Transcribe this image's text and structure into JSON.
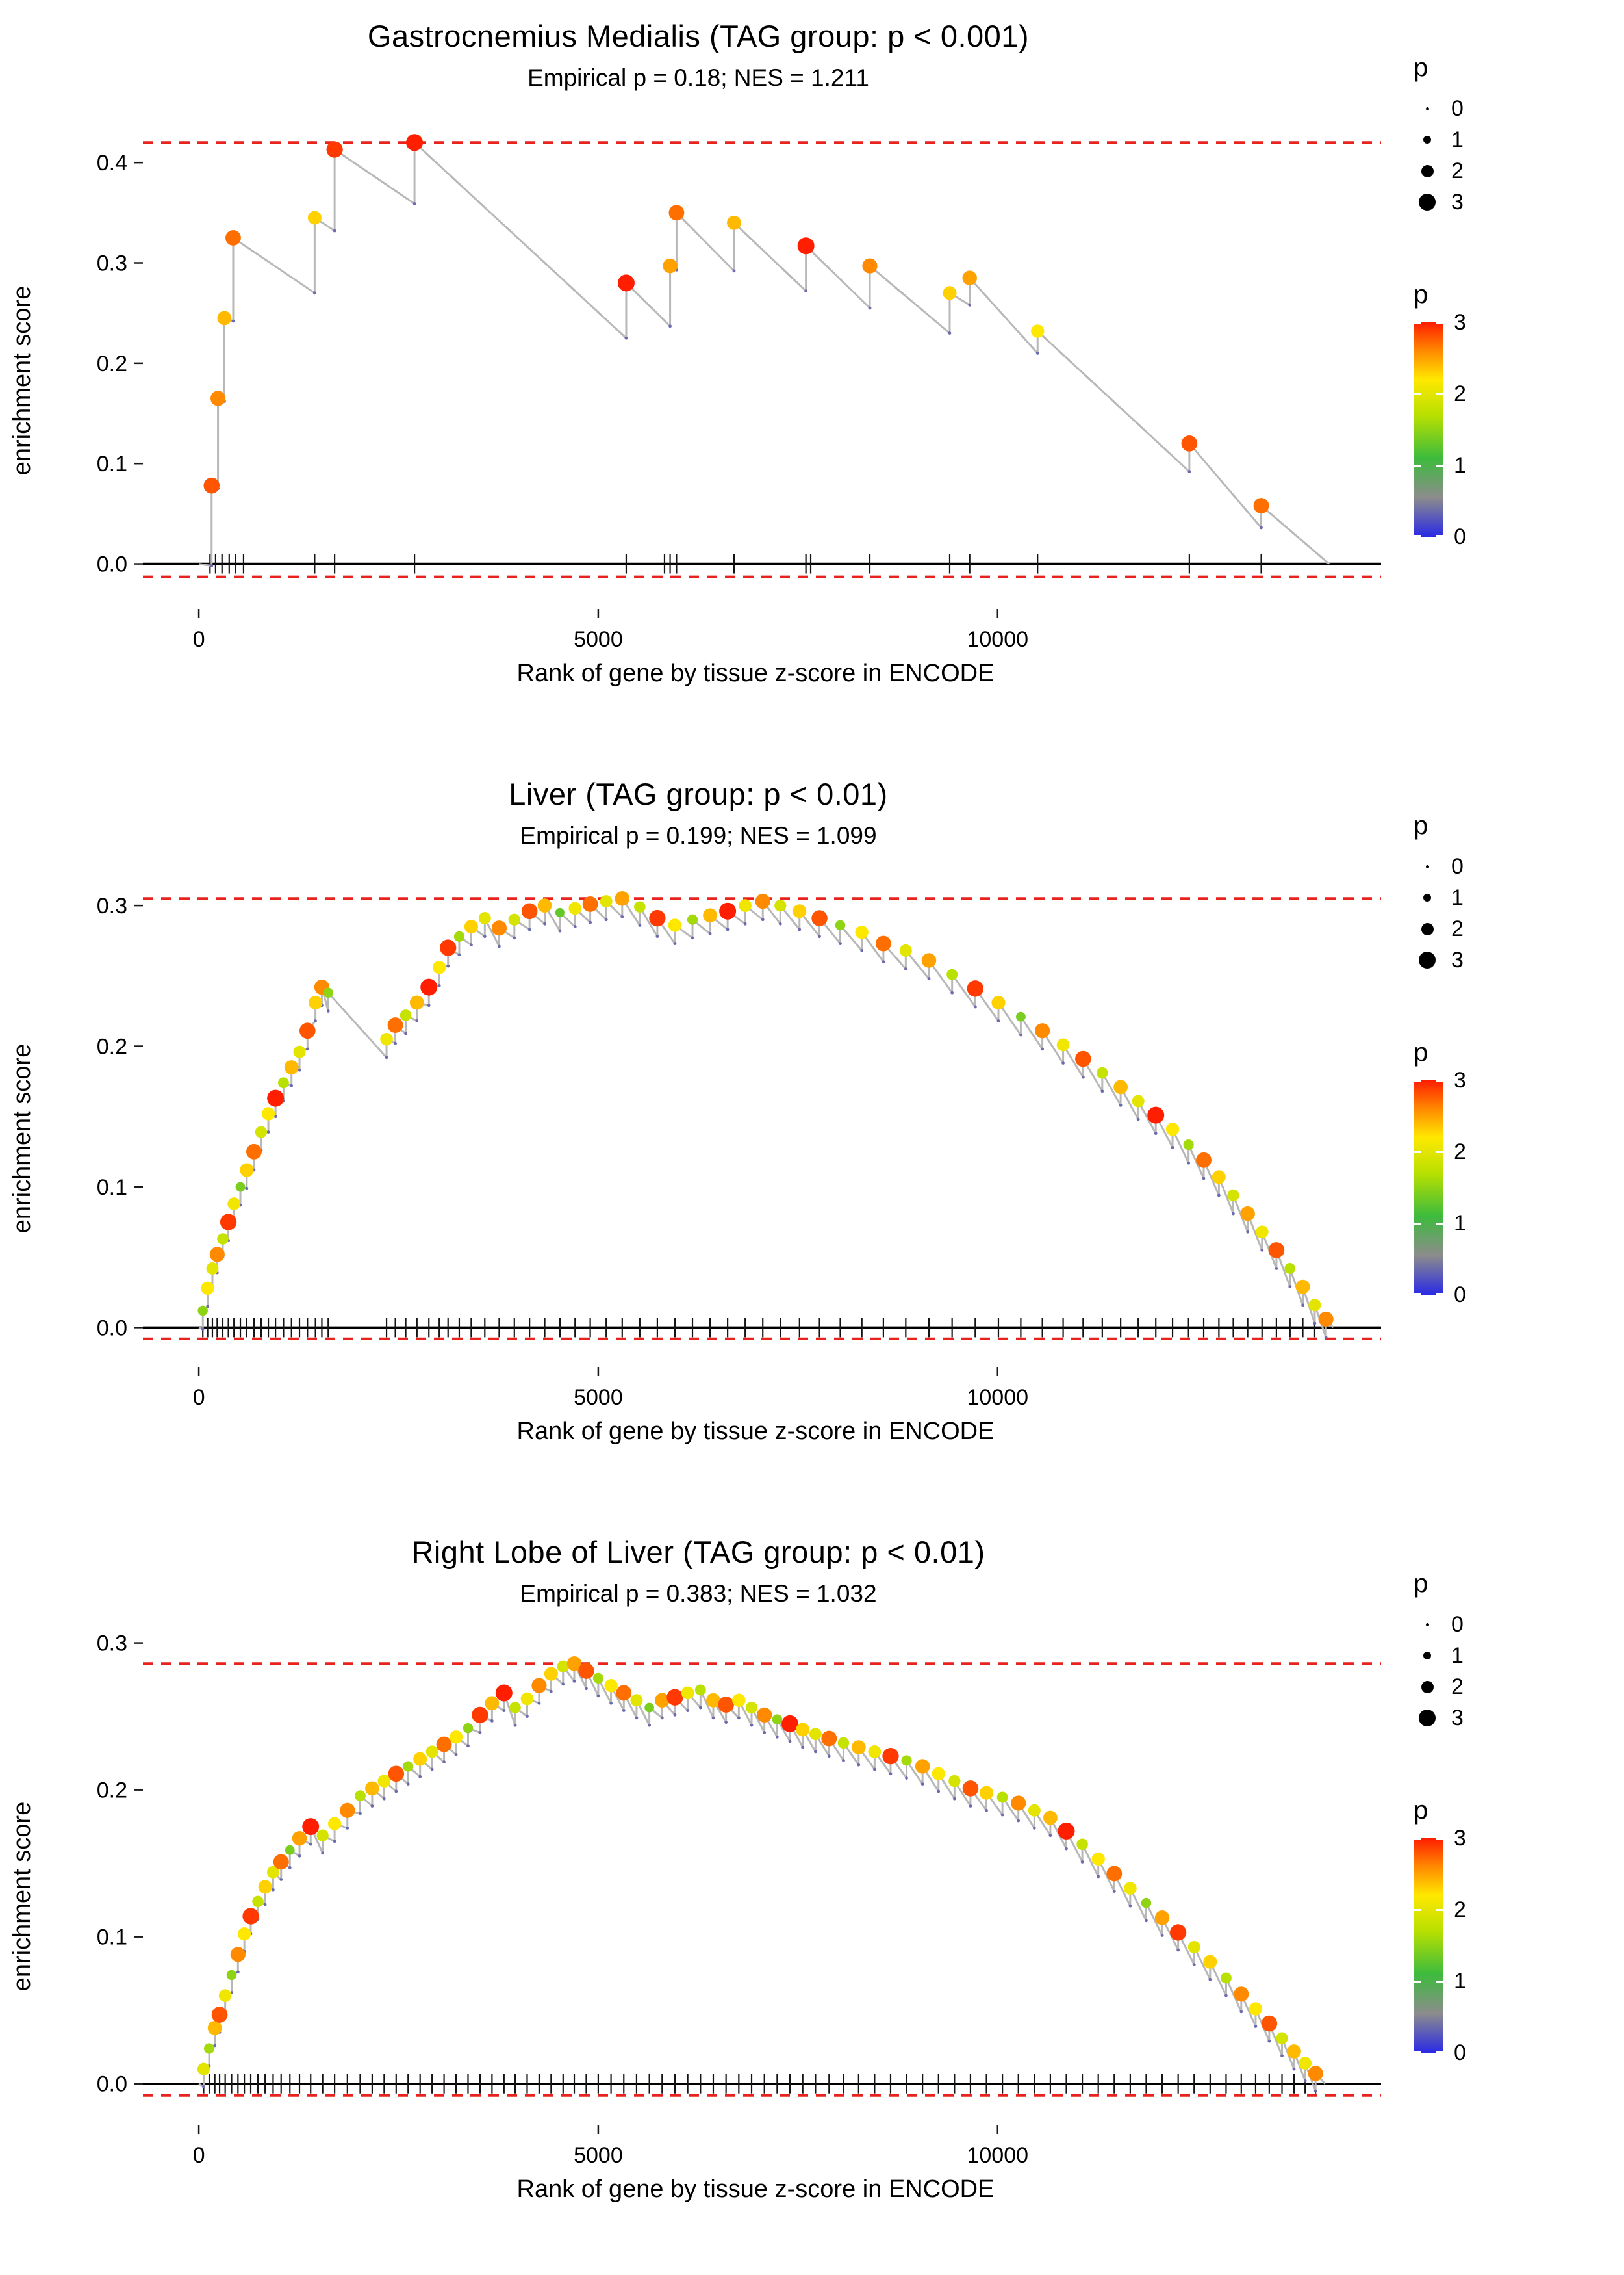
{
  "page": {
    "background": "#ffffff"
  },
  "style": {
    "dash_color": "#e8221c",
    "curve_color": "#b8b8b8",
    "rug_color": "#141414",
    "zero_line_color": "#000000",
    "pre_dot_color": "#6b6baf",
    "tick_color": "#1a1a1a",
    "text_color": "#000000"
  },
  "legend": {
    "size_title": "p",
    "size_ticks": [
      0,
      1,
      2,
      3
    ],
    "color_title": "p",
    "color_ticks": [
      0,
      1,
      2,
      3
    ],
    "color_domain": [
      0,
      3
    ],
    "color_stops": [
      [
        0.0,
        "#2a2ae6"
      ],
      [
        0.55,
        "#8c8c8c"
      ],
      [
        1.1,
        "#3dbb3d"
      ],
      [
        1.7,
        "#b8e000"
      ],
      [
        2.2,
        "#ffe800"
      ],
      [
        2.6,
        "#ff8a00"
      ],
      [
        3.0,
        "#ff1e00"
      ]
    ]
  },
  "chart_data": [
    {
      "type": "line",
      "title": "Gastrocnemius Medialis (TAG group: p < 0.001)",
      "subtitle": "Empirical p = 0.18; NES = 1.211",
      "empirical_p": 0.18,
      "nes": 1.211,
      "xlabel": "Rank of gene by tissue z-score in ENCODE",
      "ylabel": "enrichment score",
      "xlim": [
        -700,
        14800
      ],
      "ylim": [
        -0.045,
        0.45
      ],
      "xticks": [
        0,
        5000,
        10000
      ],
      "yticks": [
        0.0,
        0.1,
        0.2,
        0.3,
        0.4
      ],
      "dashed_lines": [
        0.42,
        -0.013
      ],
      "default_jump": 0.05,
      "start": [
        0,
        0
      ],
      "end": [
        14150,
        0
      ],
      "points": [
        [
          160,
          0.078,
          2.8,
          0.08
        ],
        [
          240,
          0.165,
          2.6,
          0.09
        ],
        [
          320,
          0.245,
          2.4,
          0.083
        ],
        [
          430,
          0.325,
          2.7,
          0.083
        ],
        [
          1450,
          0.345,
          2.3,
          0.075
        ],
        [
          1700,
          0.413,
          2.9,
          0.081
        ],
        [
          2700,
          0.42,
          3.0,
          0.061
        ],
        [
          5350,
          0.28,
          3.0,
          0.055
        ],
        [
          5900,
          0.297,
          2.5,
          0.06
        ],
        [
          5980,
          0.35,
          2.7,
          0.057
        ],
        [
          6700,
          0.34,
          2.4,
          0.048
        ],
        [
          7600,
          0.317,
          3.0,
          0.045
        ],
        [
          8400,
          0.297,
          2.6,
          0.042
        ],
        [
          9400,
          0.27,
          2.3,
          0.04
        ],
        [
          9650,
          0.285,
          2.5,
          0.027
        ],
        [
          10500,
          0.232,
          2.2,
          0.022
        ],
        [
          12400,
          0.12,
          2.8,
          0.028
        ],
        [
          13300,
          0.058,
          2.7,
          0.022
        ]
      ],
      "rug": [
        140,
        210,
        290,
        380,
        460,
        560,
        1450,
        1700,
        2700,
        5350,
        5830,
        5900,
        5980,
        6700,
        7600,
        7660,
        8400,
        9400,
        9650,
        10500,
        12400,
        13300
      ]
    },
    {
      "type": "line",
      "title": "Liver (TAG group: p < 0.01)",
      "subtitle": "Empirical p = 0.199; NES = 1.099",
      "empirical_p": 0.199,
      "nes": 1.099,
      "xlabel": "Rank of gene by tissue z-score in ENCODE",
      "ylabel": "enrichment score",
      "xlim": [
        -700,
        14800
      ],
      "ylim": [
        -0.028,
        0.325
      ],
      "xticks": [
        0,
        5000,
        10000
      ],
      "yticks": [
        0.0,
        0.1,
        0.2,
        0.3
      ],
      "dashed_lines": [
        0.305,
        -0.008
      ],
      "default_jump": 0.013,
      "start": [
        0,
        0
      ],
      "end": [
        14200,
        0
      ],
      "points": [
        [
          50,
          0.012,
          1.5
        ],
        [
          110,
          0.028,
          2.2
        ],
        [
          170,
          0.042,
          2.0
        ],
        [
          230,
          0.052,
          2.6
        ],
        [
          300,
          0.063,
          1.8
        ],
        [
          370,
          0.075,
          2.9
        ],
        [
          440,
          0.088,
          2.1
        ],
        [
          520,
          0.1,
          1.4
        ],
        [
          600,
          0.112,
          2.3
        ],
        [
          690,
          0.125,
          2.7
        ],
        [
          780,
          0.139,
          1.9
        ],
        [
          870,
          0.152,
          2.2
        ],
        [
          960,
          0.163,
          3.0
        ],
        [
          1060,
          0.174,
          1.7
        ],
        [
          1160,
          0.185,
          2.4
        ],
        [
          1260,
          0.196,
          2.0
        ],
        [
          1360,
          0.211,
          2.8
        ],
        [
          1460,
          0.231,
          2.3
        ],
        [
          1540,
          0.242,
          2.6
        ],
        [
          1620,
          0.238,
          1.5
        ],
        [
          2350,
          0.205,
          2.1
        ],
        [
          2460,
          0.215,
          2.7
        ],
        [
          2590,
          0.222,
          1.8
        ],
        [
          2730,
          0.231,
          2.4
        ],
        [
          2880,
          0.242,
          3.0
        ],
        [
          3010,
          0.256,
          2.2
        ],
        [
          3120,
          0.27,
          2.9
        ],
        [
          3260,
          0.278,
          1.6
        ],
        [
          3410,
          0.285,
          2.3
        ],
        [
          3580,
          0.291,
          2.0
        ],
        [
          3760,
          0.284,
          2.6
        ],
        [
          3950,
          0.29,
          1.9
        ],
        [
          4140,
          0.296,
          2.8
        ],
        [
          4330,
          0.3,
          2.4
        ],
        [
          4520,
          0.295,
          1.3
        ],
        [
          4710,
          0.298,
          2.1
        ],
        [
          4900,
          0.301,
          2.7
        ],
        [
          5100,
          0.303,
          2.0
        ],
        [
          5300,
          0.305,
          2.5
        ],
        [
          5520,
          0.299,
          1.8
        ],
        [
          5740,
          0.291,
          2.9
        ],
        [
          5960,
          0.286,
          2.2
        ],
        [
          6180,
          0.29,
          1.6
        ],
        [
          6400,
          0.293,
          2.4
        ],
        [
          6620,
          0.296,
          3.0
        ],
        [
          6840,
          0.3,
          2.1
        ],
        [
          7060,
          0.303,
          2.6
        ],
        [
          7280,
          0.3,
          1.9
        ],
        [
          7520,
          0.296,
          2.3
        ],
        [
          7770,
          0.291,
          2.8
        ],
        [
          8030,
          0.286,
          1.5
        ],
        [
          8300,
          0.281,
          2.2
        ],
        [
          8570,
          0.273,
          2.7
        ],
        [
          8850,
          0.268,
          2.0
        ],
        [
          9140,
          0.261,
          2.5
        ],
        [
          9430,
          0.251,
          1.7
        ],
        [
          9720,
          0.241,
          2.9
        ],
        [
          10010,
          0.231,
          2.3
        ],
        [
          10290,
          0.221,
          1.4
        ],
        [
          10560,
          0.211,
          2.6
        ],
        [
          10820,
          0.201,
          2.1
        ],
        [
          11070,
          0.191,
          2.8
        ],
        [
          11310,
          0.181,
          1.8
        ],
        [
          11540,
          0.171,
          2.4
        ],
        [
          11760,
          0.161,
          2.0
        ],
        [
          11980,
          0.151,
          3.0
        ],
        [
          12190,
          0.141,
          2.2
        ],
        [
          12390,
          0.13,
          1.6
        ],
        [
          12580,
          0.119,
          2.7
        ],
        [
          12770,
          0.107,
          2.3
        ],
        [
          12950,
          0.094,
          1.9
        ],
        [
          13130,
          0.081,
          2.5
        ],
        [
          13310,
          0.068,
          2.1
        ],
        [
          13490,
          0.055,
          2.8
        ],
        [
          13660,
          0.042,
          1.7
        ],
        [
          13820,
          0.029,
          2.4
        ],
        [
          13970,
          0.016,
          2.0
        ],
        [
          14110,
          0.006,
          2.6
        ]
      ]
    },
    {
      "type": "line",
      "title": "Right Lobe of Liver (TAG group: p < 0.01)",
      "subtitle": "Empirical p = 0.383; NES = 1.032",
      "empirical_p": 0.383,
      "nes": 1.032,
      "xlabel": "Rank of gene by tissue z-score in ENCODE",
      "ylabel": "enrichment score",
      "xlim": [
        -700,
        14800
      ],
      "ylim": [
        -0.028,
        0.31
      ],
      "xticks": [
        0,
        5000,
        10000
      ],
      "yticks": [
        0.0,
        0.1,
        0.2,
        0.3
      ],
      "dashed_lines": [
        0.286,
        -0.008
      ],
      "default_jump": 0.012,
      "start": [
        0,
        0
      ],
      "end": [
        14100,
        0
      ],
      "points": [
        [
          60,
          0.01,
          2.0
        ],
        [
          130,
          0.024,
          1.6
        ],
        [
          200,
          0.038,
          2.4
        ],
        [
          260,
          0.047,
          2.8
        ],
        [
          330,
          0.06,
          2.1
        ],
        [
          410,
          0.074,
          1.5
        ],
        [
          490,
          0.088,
          2.6
        ],
        [
          570,
          0.102,
          2.2
        ],
        [
          650,
          0.114,
          2.9
        ],
        [
          740,
          0.124,
          1.8
        ],
        [
          830,
          0.134,
          2.3
        ],
        [
          930,
          0.144,
          2.0
        ],
        [
          1030,
          0.151,
          2.7
        ],
        [
          1140,
          0.159,
          1.4
        ],
        [
          1260,
          0.167,
          2.5
        ],
        [
          1400,
          0.175,
          3.0
        ],
        [
          1550,
          0.169,
          1.9
        ],
        [
          1700,
          0.177,
          2.2
        ],
        [
          1860,
          0.186,
          2.6
        ],
        [
          2020,
          0.196,
          1.7
        ],
        [
          2170,
          0.201,
          2.4
        ],
        [
          2320,
          0.206,
          2.1
        ],
        [
          2470,
          0.211,
          2.8
        ],
        [
          2620,
          0.216,
          1.6
        ],
        [
          2770,
          0.221,
          2.3
        ],
        [
          2920,
          0.226,
          2.0
        ],
        [
          3070,
          0.231,
          2.7
        ],
        [
          3220,
          0.236,
          2.2
        ],
        [
          3370,
          0.242,
          1.5
        ],
        [
          3520,
          0.251,
          2.9
        ],
        [
          3670,
          0.259,
          2.4
        ],
        [
          3820,
          0.266,
          3.0
        ],
        [
          3960,
          0.256,
          1.8
        ],
        [
          4110,
          0.262,
          2.1
        ],
        [
          4260,
          0.271,
          2.6
        ],
        [
          4410,
          0.279,
          2.3
        ],
        [
          4560,
          0.284,
          1.9
        ],
        [
          4700,
          0.286,
          2.5
        ],
        [
          4850,
          0.281,
          2.8
        ],
        [
          5000,
          0.276,
          1.6
        ],
        [
          5160,
          0.271,
          2.2
        ],
        [
          5320,
          0.266,
          2.7
        ],
        [
          5480,
          0.261,
          2.0
        ],
        [
          5640,
          0.256,
          1.4
        ],
        [
          5800,
          0.261,
          2.5
        ],
        [
          5960,
          0.263,
          2.9
        ],
        [
          6120,
          0.266,
          2.1
        ],
        [
          6280,
          0.268,
          1.7
        ],
        [
          6440,
          0.261,
          2.4
        ],
        [
          6600,
          0.258,
          2.8
        ],
        [
          6760,
          0.261,
          2.2
        ],
        [
          6920,
          0.256,
          1.9
        ],
        [
          7080,
          0.251,
          2.6
        ],
        [
          7240,
          0.248,
          1.5
        ],
        [
          7400,
          0.245,
          3.0
        ],
        [
          7560,
          0.241,
          2.3
        ],
        [
          7720,
          0.238,
          2.0
        ],
        [
          7890,
          0.235,
          2.7
        ],
        [
          8070,
          0.232,
          1.8
        ],
        [
          8260,
          0.229,
          2.4
        ],
        [
          8460,
          0.226,
          2.1
        ],
        [
          8660,
          0.223,
          2.9
        ],
        [
          8860,
          0.22,
          1.6
        ],
        [
          9060,
          0.216,
          2.5
        ],
        [
          9260,
          0.211,
          2.2
        ],
        [
          9460,
          0.206,
          1.9
        ],
        [
          9660,
          0.201,
          2.8
        ],
        [
          9860,
          0.198,
          2.3
        ],
        [
          10060,
          0.195,
          1.7
        ],
        [
          10260,
          0.191,
          2.6
        ],
        [
          10460,
          0.186,
          2.0
        ],
        [
          10660,
          0.181,
          2.4
        ],
        [
          10860,
          0.172,
          3.0
        ],
        [
          11060,
          0.163,
          1.8
        ],
        [
          11260,
          0.153,
          2.2
        ],
        [
          11460,
          0.143,
          2.7
        ],
        [
          11660,
          0.133,
          2.1
        ],
        [
          11860,
          0.123,
          1.5
        ],
        [
          12060,
          0.113,
          2.5
        ],
        [
          12260,
          0.103,
          2.9
        ],
        [
          12460,
          0.093,
          2.0
        ],
        [
          12660,
          0.083,
          2.3
        ],
        [
          12860,
          0.072,
          1.7
        ],
        [
          13050,
          0.061,
          2.6
        ],
        [
          13230,
          0.051,
          2.2
        ],
        [
          13400,
          0.041,
          2.8
        ],
        [
          13560,
          0.031,
          1.9
        ],
        [
          13710,
          0.022,
          2.4
        ],
        [
          13850,
          0.014,
          2.1
        ],
        [
          13980,
          0.007,
          2.6
        ]
      ]
    }
  ]
}
